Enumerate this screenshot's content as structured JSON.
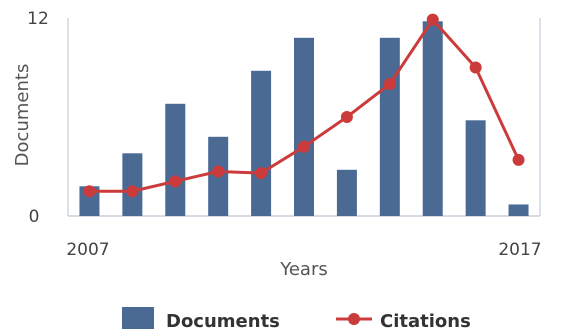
{
  "chart_data": {
    "type": "bar",
    "x": [
      2007,
      2008,
      2009,
      2010,
      2011,
      2012,
      2013,
      2014,
      2015,
      2016,
      2017
    ],
    "series": [
      {
        "name": "Documents",
        "type": "bar",
        "color": "#4a6a94",
        "values": [
          1.8,
          3.8,
          6.8,
          4.8,
          8.8,
          10.8,
          2.8,
          10.8,
          11.8,
          5.8,
          0.7
        ]
      },
      {
        "name": "Citations",
        "type": "line",
        "color": "#cc3b3b",
        "values": [
          1.5,
          1.5,
          2.1,
          2.7,
          2.6,
          4.2,
          6.0,
          8.0,
          11.9,
          9.0,
          3.4
        ]
      }
    ],
    "xlabel": "Years",
    "ylabel": "Documents",
    "ylim": [
      0,
      12
    ],
    "y_tick_labels": [
      "0",
      "12"
    ],
    "x_tick_labels": [
      "2007",
      "2017"
    ],
    "grid": false,
    "legend_position": "bottom"
  }
}
